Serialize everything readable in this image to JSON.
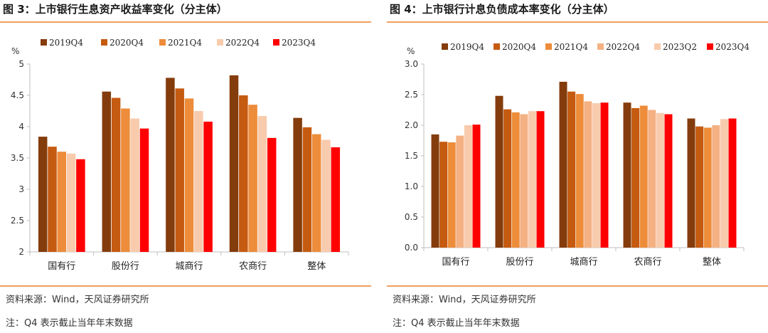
{
  "left_panel": {
    "title": "图 3：上市银行生息资产收益率变化（分主体）",
    "source": "资料来源：Wind，天风证券研究所",
    "note": "注：Q4 表示截止当年年末数据"
  },
  "right_panel": {
    "title": "图 4：上市银行计息负债成本率变化（分主体）",
    "source": "资料来源：Wind，天风证券研究所",
    "note": "注：Q4 表示截止当年年末数据"
  },
  "chart_data": [
    {
      "type": "bar",
      "ylabel": "%",
      "ylim": [
        2,
        5
      ],
      "yticks": [
        "2",
        "2.5",
        "3",
        "3.5",
        "4",
        "4.5",
        "5"
      ],
      "ytick_values": [
        2,
        2.5,
        3,
        3.5,
        4,
        4.5,
        5
      ],
      "grid": false,
      "legend": "top",
      "categories": [
        "国有行",
        "股份行",
        "城商行",
        "农商行",
        "整体"
      ],
      "series": [
        {
          "name": "2019Q4",
          "color": "#843c0c",
          "values": [
            3.84,
            4.56,
            4.78,
            4.82,
            4.14
          ]
        },
        {
          "name": "2020Q4",
          "color": "#c55a11",
          "values": [
            3.68,
            4.46,
            4.61,
            4.5,
            3.99
          ]
        },
        {
          "name": "2021Q4",
          "color": "#ed8c3a",
          "values": [
            3.6,
            4.29,
            4.45,
            4.35,
            3.88
          ]
        },
        {
          "name": "2022Q4",
          "color": "#f8cbad",
          "values": [
            3.57,
            4.13,
            4.25,
            4.17,
            3.79
          ]
        },
        {
          "name": "2023Q4",
          "color": "#ff0000",
          "values": [
            3.48,
            3.97,
            4.08,
            3.82,
            3.67
          ]
        }
      ]
    },
    {
      "type": "bar",
      "ylabel": "%",
      "ylim": [
        0,
        3
      ],
      "yticks": [
        "0.0",
        "0.5",
        "1.0",
        "1.5",
        "2.0",
        "2.5",
        "3.0"
      ],
      "ytick_values": [
        0,
        0.5,
        1,
        1.5,
        2,
        2.5,
        3
      ],
      "grid": false,
      "legend": "top",
      "categories": [
        "国有行",
        "股份行",
        "城商行",
        "农商行",
        "整体"
      ],
      "series": [
        {
          "name": "2019Q4",
          "color": "#843c0c",
          "values": [
            1.85,
            2.48,
            2.71,
            2.37,
            2.11
          ]
        },
        {
          "name": "2020Q4",
          "color": "#c55a11",
          "values": [
            1.73,
            2.26,
            2.55,
            2.28,
            1.98
          ]
        },
        {
          "name": "2021Q4",
          "color": "#ed8c3a",
          "values": [
            1.72,
            2.21,
            2.51,
            2.32,
            1.96
          ]
        },
        {
          "name": "2022Q4",
          "color": "#f4b183",
          "values": [
            1.83,
            2.18,
            2.39,
            2.25,
            2.0
          ]
        },
        {
          "name": "2023Q2",
          "color": "#f8cbad",
          "values": [
            2.0,
            2.23,
            2.36,
            2.2,
            2.1
          ]
        },
        {
          "name": "2023Q4",
          "color": "#ff0000",
          "values": [
            2.01,
            2.23,
            2.37,
            2.18,
            2.11
          ]
        }
      ]
    }
  ]
}
